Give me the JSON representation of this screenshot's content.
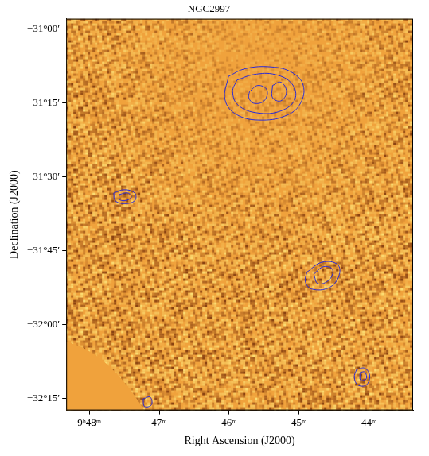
{
  "chart_data": {
    "type": "contour",
    "title": "NGC2997",
    "x_label": "Right Ascension (J2000)",
    "y_label": "Declination (J2000)",
    "xlim": [
      48.33,
      43.37
    ],
    "ylim": [
      -32.29,
      -30.964
    ],
    "xticks": [
      {
        "value": 48,
        "label": "9ʰ48ᵐ"
      },
      {
        "value": 47,
        "label": "47ᵐ"
      },
      {
        "value": 46,
        "label": "46ᵐ"
      },
      {
        "value": 45,
        "label": "45ᵐ"
      },
      {
        "value": 44,
        "label": "44ᵐ"
      }
    ],
    "yticks": [
      {
        "value": -31,
        "label": "−31°00′"
      },
      {
        "value": -31.25,
        "label": "−31°15′"
      },
      {
        "value": -31.5,
        "label": "−31°30′"
      },
      {
        "value": -31.75,
        "label": "−31°45′"
      },
      {
        "value": -32,
        "label": "−32°00′"
      },
      {
        "value": -32.25,
        "label": "−32°15′"
      }
    ],
    "grid": false,
    "color": "#2b2bd6",
    "contours": [
      [
        [
          46.01,
          -31.159
        ],
        [
          45.77,
          -31.133
        ],
        [
          45.4,
          -31.127
        ],
        [
          45.1,
          -31.146
        ],
        [
          44.94,
          -31.19
        ],
        [
          44.98,
          -31.25
        ],
        [
          45.16,
          -31.289
        ],
        [
          45.52,
          -31.307
        ],
        [
          45.89,
          -31.289
        ],
        [
          46.06,
          -31.237
        ]
      ],
      [
        [
          45.89,
          -31.172
        ],
        [
          45.65,
          -31.153
        ],
        [
          45.34,
          -31.153
        ],
        [
          45.1,
          -31.185
        ],
        [
          45.06,
          -31.237
        ],
        [
          45.26,
          -31.276
        ],
        [
          45.59,
          -31.283
        ],
        [
          45.87,
          -31.257
        ],
        [
          45.95,
          -31.211
        ]
      ],
      [
        [
          45.71,
          -31.211
        ],
        [
          45.59,
          -31.19
        ],
        [
          45.46,
          -31.205
        ],
        [
          45.5,
          -31.242
        ],
        [
          45.65,
          -31.25
        ],
        [
          45.72,
          -31.231
        ]
      ],
      [
        [
          45.38,
          -31.19
        ],
        [
          45.26,
          -31.179
        ],
        [
          45.18,
          -31.211
        ],
        [
          45.26,
          -31.242
        ],
        [
          45.38,
          -31.231
        ]
      ],
      [
        [
          47.65,
          -31.554
        ],
        [
          47.5,
          -31.543
        ],
        [
          47.35,
          -31.554
        ],
        [
          47.35,
          -31.58
        ],
        [
          47.5,
          -31.59
        ],
        [
          47.63,
          -31.58
        ]
      ],
      [
        [
          47.57,
          -31.559
        ],
        [
          47.45,
          -31.554
        ],
        [
          47.4,
          -31.569
        ],
        [
          47.5,
          -31.58
        ],
        [
          47.57,
          -31.575
        ]
      ],
      [
        [
          44.89,
          -31.822
        ],
        [
          44.67,
          -31.788
        ],
        [
          44.45,
          -31.796
        ],
        [
          44.43,
          -31.835
        ],
        [
          44.57,
          -31.874
        ],
        [
          44.82,
          -31.879
        ],
        [
          44.91,
          -31.855
        ]
      ],
      [
        [
          44.79,
          -31.829
        ],
        [
          44.65,
          -31.803
        ],
        [
          44.52,
          -31.814
        ],
        [
          44.57,
          -31.848
        ],
        [
          44.73,
          -31.861
        ]
      ],
      [
        [
          44.18,
          -32.152
        ],
        [
          44.06,
          -32.147
        ],
        [
          43.99,
          -32.173
        ],
        [
          44.04,
          -32.204
        ],
        [
          44.16,
          -32.204
        ],
        [
          44.21,
          -32.178
        ]
      ],
      [
        [
          44.13,
          -32.162
        ],
        [
          44.06,
          -32.16
        ],
        [
          44.04,
          -32.183
        ],
        [
          44.12,
          -32.188
        ]
      ],
      [
        [
          47.23,
          -32.251
        ],
        [
          47.13,
          -32.245
        ],
        [
          47.11,
          -32.271
        ],
        [
          47.21,
          -32.277
        ]
      ]
    ]
  }
}
